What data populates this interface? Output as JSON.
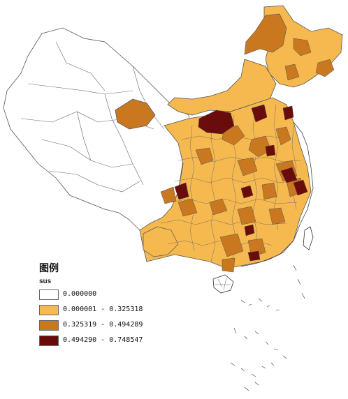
{
  "legend": {
    "title": "图例",
    "field": "sus",
    "classes": [
      {
        "label": "0.000000",
        "color": "#ffffff"
      },
      {
        "label": "0.000001 - 0.325318",
        "color": "#f5b94f"
      },
      {
        "label": "0.325319 - 0.494289",
        "color": "#c9781f"
      },
      {
        "label": "0.494290 - 0.748547",
        "color": "#6b0c0c"
      }
    ]
  },
  "colors": {
    "class0": "#ffffff",
    "class1": "#f5b94f",
    "class2": "#c9781f",
    "class3": "#6b0c0c",
    "boundary": "#555555"
  }
}
